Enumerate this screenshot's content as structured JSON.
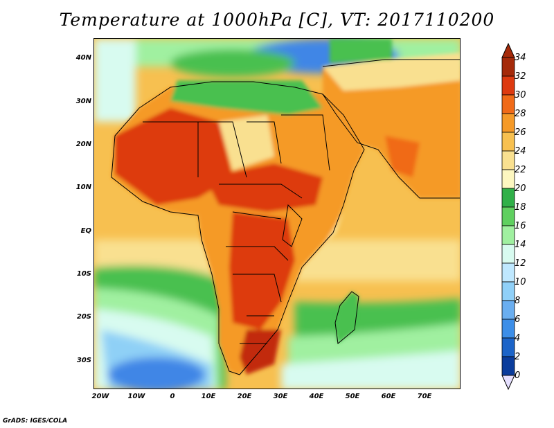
{
  "title": "Temperature at 1000hPa [C], VT: 2017110200",
  "credit": "GrADS: IGES/COLA",
  "lat_ticks": [
    "40N",
    "30N",
    "20N",
    "10N",
    "EQ",
    "10S",
    "20S",
    "30S"
  ],
  "lon_ticks": [
    "20W",
    "10W",
    "0",
    "10E",
    "20E",
    "30E",
    "40E",
    "50E",
    "60E",
    "70E"
  ],
  "colorbar": {
    "levels": [
      "34",
      "32",
      "30",
      "28",
      "26",
      "24",
      "22",
      "20",
      "18",
      "16",
      "14",
      "12",
      "10",
      "8",
      "6",
      "4",
      "2",
      "0"
    ],
    "colors": [
      "#a52a0a",
      "#dd3a10",
      "#f06a18",
      "#f59a28",
      "#f7c050",
      "#f9e090",
      "#fdf7c0",
      "#30b048",
      "#60d060",
      "#a0f0a0",
      "#d8fbf0",
      "#bfe8ff",
      "#90d0f8",
      "#6aaef0",
      "#3c8ee8",
      "#1c64c8",
      "#0a3c9c",
      "#001a70"
    ]
  },
  "map_colors": {
    "ocean_cool": "#8fd0f6",
    "ocean_cold": "#3f86e6",
    "ocean_mild": "#d8fbf0",
    "green": "#48c050",
    "lightgreen": "#a0f0a0",
    "yellow": "#f9e090",
    "orange": "#f59a28",
    "red": "#dd3a10",
    "darkred": "#c22a0a"
  }
}
